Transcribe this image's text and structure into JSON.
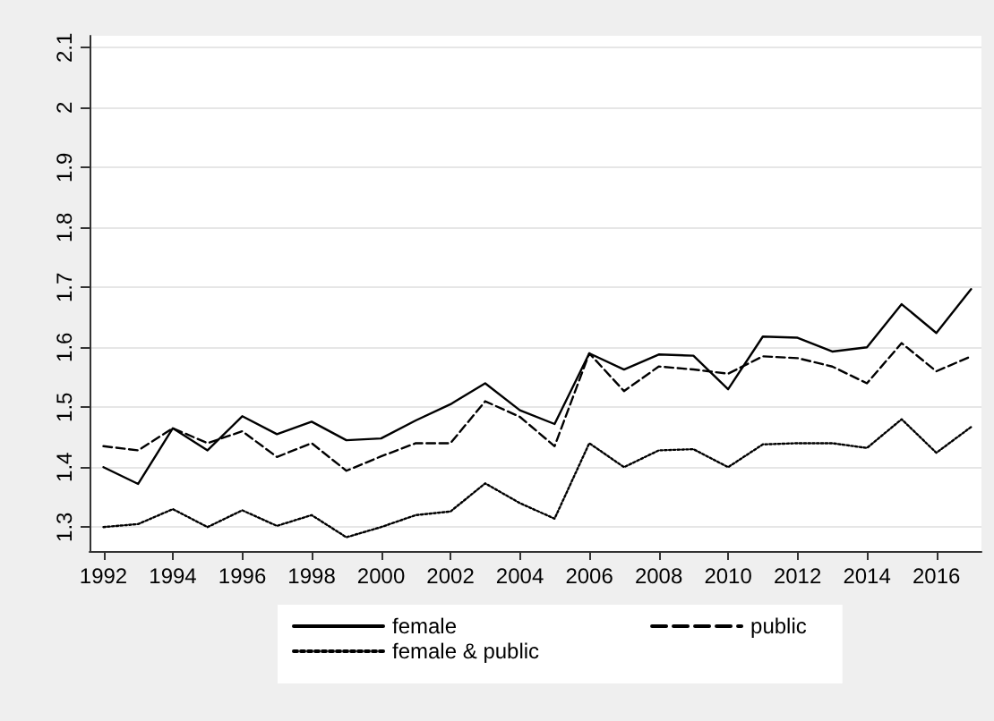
{
  "chart_data": {
    "type": "line",
    "x": [
      1992,
      1993,
      1994,
      1995,
      1996,
      1997,
      1998,
      1999,
      2000,
      2001,
      2002,
      2003,
      2004,
      2005,
      2006,
      2007,
      2008,
      2009,
      2010,
      2011,
      2012,
      2013,
      2014,
      2015,
      2016,
      2017
    ],
    "series": [
      {
        "name": "female",
        "color": "#000000",
        "line_style": "solid",
        "values": [
          1.4,
          1.372,
          1.465,
          1.428,
          1.485,
          1.455,
          1.476,
          1.445,
          1.448,
          1.478,
          1.505,
          1.54,
          1.495,
          1.472,
          1.59,
          1.563,
          1.588,
          1.586,
          1.53,
          1.618,
          1.616,
          1.593,
          1.6,
          1.672,
          1.624,
          1.697
        ]
      },
      {
        "name": "public",
        "color": "#000000",
        "line_style": "dashed",
        "values": [
          1.435,
          1.428,
          1.465,
          1.44,
          1.46,
          1.417,
          1.44,
          1.394,
          1.418,
          1.44,
          1.44,
          1.51,
          1.484,
          1.435,
          1.59,
          1.527,
          1.568,
          1.563,
          1.556,
          1.585,
          1.582,
          1.568,
          1.54,
          1.607,
          1.56,
          1.585
        ]
      },
      {
        "name": "female & public",
        "color": "#000000",
        "line_style": "dotted",
        "values": [
          1.3,
          1.305,
          1.33,
          1.3,
          1.328,
          1.302,
          1.32,
          1.283,
          1.3,
          1.32,
          1.326,
          1.373,
          1.34,
          1.314,
          1.44,
          1.4,
          1.428,
          1.43,
          1.4,
          1.438,
          1.44,
          1.44,
          1.432,
          1.48,
          1.424,
          1.467
        ]
      }
    ],
    "xlim": [
      1991.6,
      2017.3
    ],
    "xticks": [
      1992,
      1994,
      1996,
      1998,
      2000,
      2002,
      2004,
      2006,
      2008,
      2010,
      2012,
      2014,
      2016
    ],
    "ylim": [
      1.26,
      2.12
    ],
    "yticks": [
      1.3,
      1.4,
      1.5,
      1.6,
      1.7,
      1.8,
      1.9,
      2,
      2.1
    ],
    "grid": "y",
    "legend": "bottom",
    "marker": "none"
  }
}
